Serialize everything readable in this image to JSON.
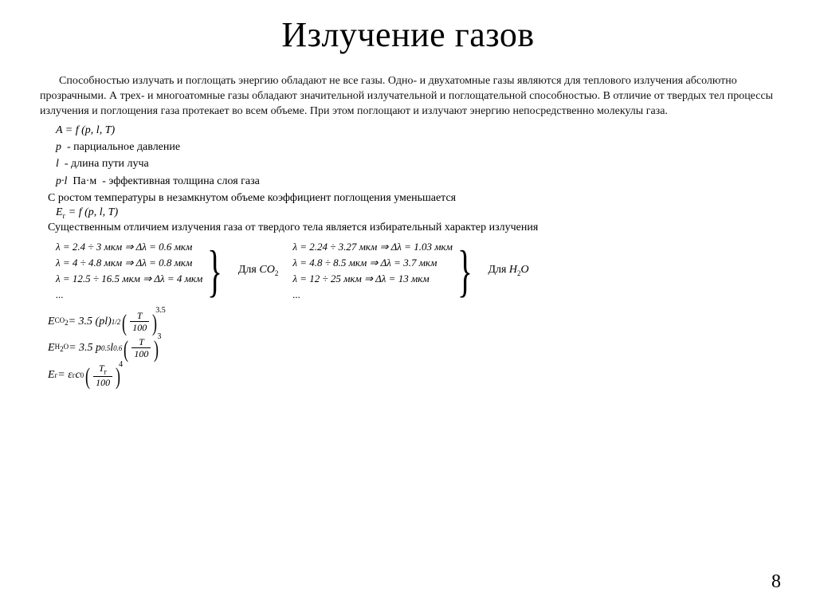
{
  "title": "Излучение газов",
  "intro": "Способностью излучать и поглощать энергию обладают не все газы. Одно- и двухатомные газы являются для теплового излучения абсолютно прозрачными. А трех- и многоатомные газы обладают значительной излучательной и поглощательной способностью. В отличие от твердых тел процессы излучения и поглощения газа протекает во всем объеме. При этом поглощают и излучают энергию непосредственно молекулы газа.",
  "eq_A": "A = f (p, l, T)",
  "defs": {
    "p": {
      "sym": "p",
      "desc": "- парциальное давление"
    },
    "l": {
      "sym": "l",
      "desc": "- длина пути луча"
    },
    "pl": {
      "sym": "p·l",
      "unit": "Па·м",
      "desc": "- эффективная толщина слоя газа"
    }
  },
  "line_temp": "С ростом температуры в незамкнутом объеме коэффициент поглощения уменьшается",
  "eq_Eg": "Eг = f (p, l, T)",
  "line_select": "Существенным отличием излучения газа от твердого тела является избирательный характер излучения",
  "co2": {
    "l1": "λ = 2.4 ÷ 3 мкм ⇒ Δλ = 0.6 мкм",
    "l2": "λ = 4 ÷ 4.8 мкм ⇒ Δλ = 0.8 мкм",
    "l3": "λ = 12.5 ÷ 16.5 мкм ⇒ Δλ = 4 мкм",
    "l4": "...",
    "label_prefix": "Для ",
    "label_formula": "CO",
    "label_sub": "2"
  },
  "h2o": {
    "l1": "λ = 2.24 ÷ 3.27 мкм ⇒ Δλ = 1.03 мкм",
    "l2": "λ = 4.8 ÷ 8.5 мкм ⇒ Δλ = 3.7 мкм",
    "l3": "λ = 12 ÷ 25 мкм ⇒ Δλ = 13 мкм",
    "l4": "...",
    "label_prefix": "Для ",
    "label_formula": "H",
    "label_sub": "2",
    "label_tail": "O"
  },
  "eqs": {
    "eco2": {
      "lhs": "E",
      "lhs_sub": "CO₂",
      "coef": " = 3.5 (pl)",
      "sup1": "1/2",
      "frac_num": "T",
      "frac_den": "100",
      "pow": "3.5"
    },
    "eh2o": {
      "lhs": "E",
      "lhs_sub": "H₂O",
      "coef": " = 3.5 p",
      "sup1": "0.5",
      "mid": " l",
      "sup2": "0.6",
      "frac_num": "T",
      "frac_den": "100",
      "pow": "3"
    },
    "eg": {
      "lhs": "E",
      "lhs_sub": "г",
      "coef": " = ε",
      "coef_sub": "г",
      "mid": " c",
      "mid_sub": "0",
      "frac_num": "Tг",
      "frac_den": "100",
      "pow": "4"
    }
  },
  "page": "8"
}
